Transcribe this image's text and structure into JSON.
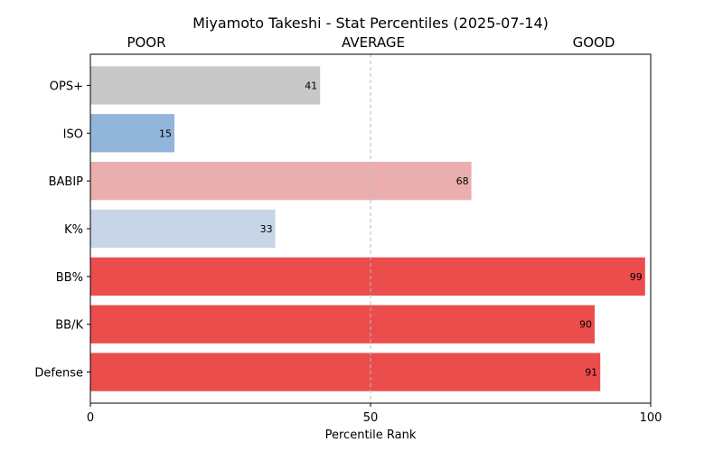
{
  "chart_data": {
    "type": "bar",
    "orientation": "horizontal",
    "title": "Miyamoto Takeshi - Stat Percentiles (2025-07-14)",
    "xlabel": "Percentile Rank",
    "ylabel": "",
    "xlim": [
      0,
      100
    ],
    "xticks": [
      "0",
      "50",
      "100"
    ],
    "zone_labels": {
      "low": "POOR",
      "mid": "AVERAGE",
      "high": "GOOD"
    },
    "reference_line": 50,
    "grid": false,
    "categories": [
      "OPS+",
      "ISO",
      "BABIP",
      "K%",
      "BB%",
      "BB/K",
      "Defense"
    ],
    "values": [
      41,
      15,
      68,
      33,
      99,
      90,
      91
    ],
    "colors": [
      "#c8c8c8",
      "#92b5da",
      "#ebaeae",
      "#c7d5e6",
      "#eb4d4d",
      "#eb4d4d",
      "#eb4d4d"
    ]
  }
}
